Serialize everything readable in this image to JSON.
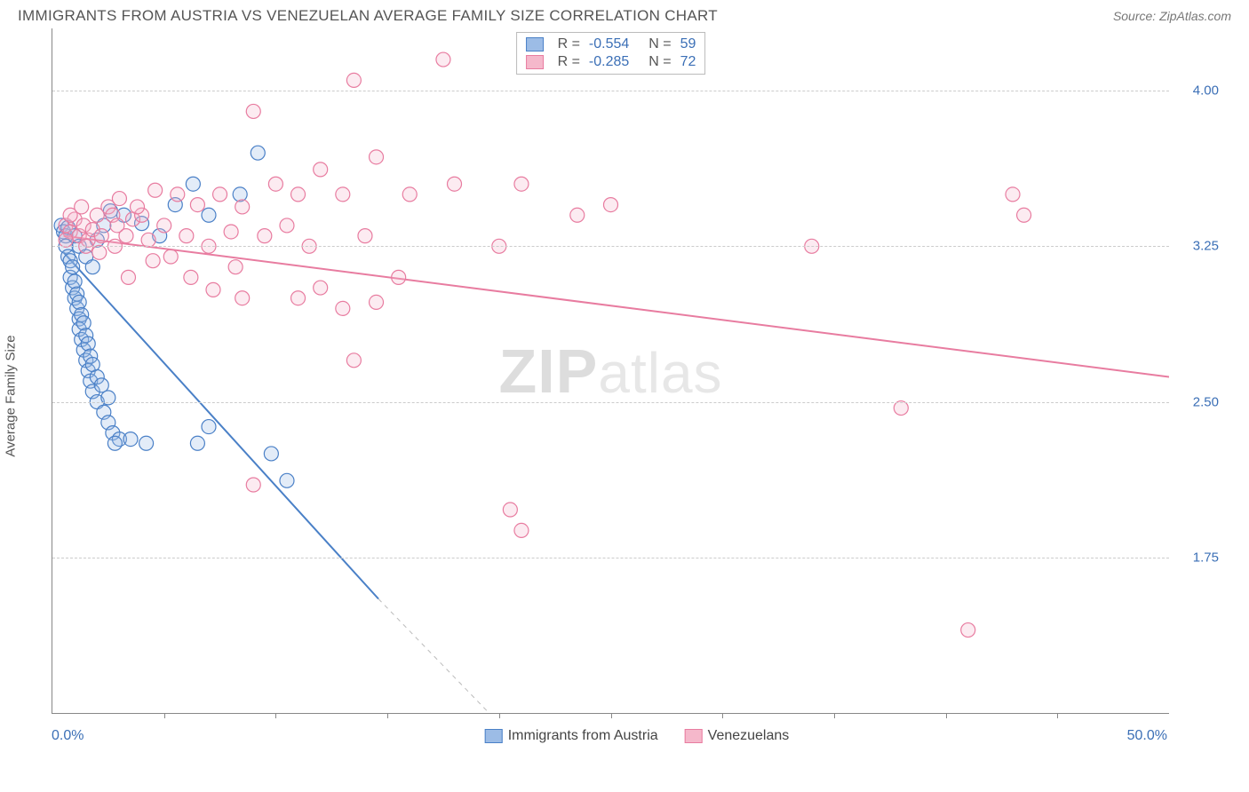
{
  "header": {
    "title": "IMMIGRANTS FROM AUSTRIA VS VENEZUELAN AVERAGE FAMILY SIZE CORRELATION CHART",
    "source_label": "Source: ",
    "source_name": "ZipAtlas.com"
  },
  "watermark": {
    "bold": "ZIP",
    "rest": "atlas"
  },
  "chart": {
    "type": "scatter",
    "ylabel": "Average Family Size",
    "xlim": [
      0,
      50
    ],
    "ylim": [
      1.0,
      4.3
    ],
    "x_axis_labels": {
      "left": "0.0%",
      "right": "50.0%"
    },
    "y_ticks": [
      1.75,
      2.5,
      3.25,
      4.0
    ],
    "y_tick_labels": [
      "1.75",
      "2.50",
      "3.25",
      "4.00"
    ],
    "x_tick_positions": [
      5,
      10,
      15,
      20,
      25,
      30,
      35,
      40,
      45
    ],
    "grid_color": "#cccccc",
    "background_color": "#ffffff",
    "axis_color": "#888888",
    "marker_radius": 8,
    "marker_stroke_width": 1.2,
    "marker_fill_opacity": 0.28,
    "line_width": 2,
    "series": [
      {
        "name": "Immigrants from Austria",
        "color_stroke": "#4a80c7",
        "color_fill": "#9cbce6",
        "r_value": "-0.554",
        "n_value": "59",
        "trend": {
          "x1": 0.5,
          "y1": 3.22,
          "x2": 14.6,
          "y2": 1.55,
          "dash_from_x": 14.6,
          "dash_to_x": 20.0,
          "dash_to_y": 0.95
        },
        "points": [
          [
            0.4,
            3.35
          ],
          [
            0.5,
            3.32
          ],
          [
            0.6,
            3.3
          ],
          [
            0.6,
            3.25
          ],
          [
            0.7,
            3.34
          ],
          [
            0.7,
            3.2
          ],
          [
            0.8,
            3.18
          ],
          [
            0.8,
            3.1
          ],
          [
            0.9,
            3.15
          ],
          [
            0.9,
            3.05
          ],
          [
            1.0,
            3.08
          ],
          [
            1.0,
            3.0
          ],
          [
            1.1,
            3.02
          ],
          [
            1.1,
            2.95
          ],
          [
            1.2,
            2.98
          ],
          [
            1.2,
            2.9
          ],
          [
            1.2,
            2.85
          ],
          [
            1.3,
            2.92
          ],
          [
            1.3,
            2.8
          ],
          [
            1.4,
            2.88
          ],
          [
            1.4,
            2.75
          ],
          [
            1.5,
            2.82
          ],
          [
            1.5,
            2.7
          ],
          [
            1.6,
            2.78
          ],
          [
            1.6,
            2.65
          ],
          [
            1.7,
            2.72
          ],
          [
            1.7,
            2.6
          ],
          [
            1.8,
            2.68
          ],
          [
            1.8,
            2.55
          ],
          [
            2.0,
            2.62
          ],
          [
            2.0,
            2.5
          ],
          [
            2.2,
            2.58
          ],
          [
            2.3,
            2.45
          ],
          [
            2.5,
            2.52
          ],
          [
            2.5,
            2.4
          ],
          [
            2.7,
            2.35
          ],
          [
            3.0,
            2.32
          ],
          [
            1.0,
            3.3
          ],
          [
            1.2,
            3.25
          ],
          [
            1.5,
            3.2
          ],
          [
            1.8,
            3.15
          ],
          [
            2.0,
            3.28
          ],
          [
            2.3,
            3.35
          ],
          [
            2.6,
            3.42
          ],
          [
            3.2,
            3.4
          ],
          [
            4.0,
            3.36
          ],
          [
            4.8,
            3.3
          ],
          [
            5.5,
            3.45
          ],
          [
            6.3,
            3.55
          ],
          [
            7.0,
            3.4
          ],
          [
            8.4,
            3.5
          ],
          [
            9.2,
            3.7
          ],
          [
            6.5,
            2.3
          ],
          [
            7.0,
            2.38
          ],
          [
            9.8,
            2.25
          ],
          [
            10.5,
            2.12
          ],
          [
            2.8,
            2.3
          ],
          [
            3.5,
            2.32
          ],
          [
            4.2,
            2.3
          ]
        ]
      },
      {
        "name": "Venezuelans",
        "color_stroke": "#e87ca0",
        "color_fill": "#f5b8cb",
        "r_value": "-0.285",
        "n_value": "72",
        "trend": {
          "x1": 0.5,
          "y1": 3.3,
          "x2": 50,
          "y2": 2.62
        },
        "points": [
          [
            0.6,
            3.35
          ],
          [
            0.8,
            3.32
          ],
          [
            1.0,
            3.38
          ],
          [
            1.2,
            3.3
          ],
          [
            1.4,
            3.35
          ],
          [
            1.6,
            3.28
          ],
          [
            1.8,
            3.33
          ],
          [
            2.0,
            3.4
          ],
          [
            2.2,
            3.3
          ],
          [
            2.5,
            3.44
          ],
          [
            2.8,
            3.25
          ],
          [
            3.0,
            3.48
          ],
          [
            3.3,
            3.3
          ],
          [
            3.6,
            3.38
          ],
          [
            4.0,
            3.4
          ],
          [
            4.3,
            3.28
          ],
          [
            4.6,
            3.52
          ],
          [
            5.0,
            3.35
          ],
          [
            5.3,
            3.2
          ],
          [
            5.6,
            3.5
          ],
          [
            6.0,
            3.3
          ],
          [
            6.5,
            3.45
          ],
          [
            7.0,
            3.25
          ],
          [
            7.5,
            3.5
          ],
          [
            8.0,
            3.32
          ],
          [
            8.5,
            3.44
          ],
          [
            9.0,
            3.9
          ],
          [
            9.5,
            3.3
          ],
          [
            10.0,
            3.55
          ],
          [
            10.5,
            3.35
          ],
          [
            11.0,
            3.5
          ],
          [
            11.5,
            3.25
          ],
          [
            12.0,
            3.62
          ],
          [
            13.0,
            3.5
          ],
          [
            13.5,
            4.05
          ],
          [
            14.0,
            3.3
          ],
          [
            14.5,
            3.68
          ],
          [
            15.5,
            3.1
          ],
          [
            16.0,
            3.5
          ],
          [
            17.5,
            4.15
          ],
          [
            18.0,
            3.55
          ],
          [
            11.0,
            3.0
          ],
          [
            12.0,
            3.05
          ],
          [
            13.0,
            2.95
          ],
          [
            13.5,
            2.7
          ],
          [
            14.5,
            2.98
          ],
          [
            8.5,
            3.0
          ],
          [
            9.0,
            2.1
          ],
          [
            20.0,
            3.25
          ],
          [
            21.0,
            3.55
          ],
          [
            23.5,
            3.4
          ],
          [
            25.0,
            3.45
          ],
          [
            20.5,
            1.98
          ],
          [
            21.0,
            1.88
          ],
          [
            34.0,
            3.25
          ],
          [
            38.0,
            2.47
          ],
          [
            41.0,
            1.4
          ],
          [
            43.0,
            3.5
          ],
          [
            43.5,
            3.4
          ],
          [
            0.8,
            3.4
          ],
          [
            1.3,
            3.44
          ],
          [
            2.7,
            3.4
          ],
          [
            3.8,
            3.44
          ],
          [
            6.2,
            3.1
          ],
          [
            7.2,
            3.04
          ],
          [
            8.2,
            3.15
          ],
          [
            0.6,
            3.28
          ],
          [
            1.5,
            3.25
          ],
          [
            2.1,
            3.22
          ],
          [
            2.9,
            3.35
          ],
          [
            3.4,
            3.1
          ],
          [
            4.5,
            3.18
          ]
        ]
      }
    ],
    "legend": {
      "items": [
        {
          "label": "Immigrants from Austria",
          "fill": "#9cbce6",
          "stroke": "#4a80c7"
        },
        {
          "label": "Venezuelans",
          "fill": "#f5b8cb",
          "stroke": "#e87ca0"
        }
      ]
    }
  }
}
